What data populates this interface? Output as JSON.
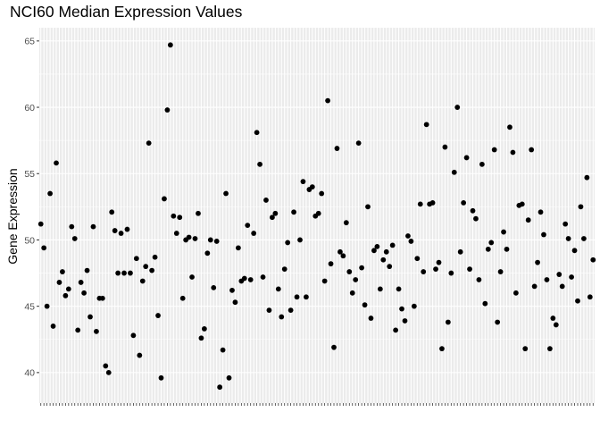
{
  "chart_data": {
    "type": "scatter",
    "title": "NCI60 Median Expression Values",
    "xlabel": "",
    "ylabel": "Gene Expression",
    "ylim": [
      37.7,
      66.0
    ],
    "yticks": [
      40,
      45,
      50,
      55,
      60,
      65
    ],
    "ytick_labels": [
      "40",
      "45",
      "50",
      "55",
      "60",
      "65"
    ],
    "x_tick_labels_visible": false,
    "grid": true,
    "point_color": "#000000",
    "panel_background": "#ebebeb",
    "grid_color": "#ffffff",
    "values": [
      51.2,
      49.4,
      45.0,
      53.5,
      43.5,
      55.8,
      46.8,
      47.6,
      45.8,
      46.3,
      51.0,
      50.1,
      43.2,
      46.8,
      46.0,
      47.7,
      44.2,
      51.0,
      43.1,
      45.6,
      45.6,
      40.5,
      40.0,
      52.1,
      50.7,
      47.5,
      50.5,
      47.5,
      50.8,
      47.5,
      42.8,
      48.6,
      41.3,
      46.9,
      48.0,
      57.3,
      47.7,
      48.7,
      44.3,
      39.6,
      53.1,
      59.8,
      64.7,
      51.8,
      50.5,
      51.7,
      45.6,
      50.0,
      50.2,
      47.2,
      50.1,
      52.0,
      42.6,
      43.3,
      49.0,
      50.0,
      46.4,
      49.9,
      38.9,
      41.7,
      53.5,
      39.6,
      46.2,
      45.3,
      49.4,
      46.9,
      47.1,
      51.1,
      47.0,
      50.5,
      58.1,
      55.7,
      47.2,
      53.0,
      44.7,
      51.7,
      52.0,
      46.3,
      44.2,
      47.8,
      49.8,
      44.7,
      52.1,
      45.7,
      50.0,
      54.4,
      45.7,
      53.8,
      54.0,
      51.8,
      52.0,
      53.5,
      46.9,
      60.5,
      48.2,
      41.9,
      56.9,
      49.1,
      48.8,
      51.3,
      47.6,
      46.0,
      47.0,
      57.3,
      47.9,
      45.1,
      52.5,
      44.1,
      49.2,
      49.5,
      46.3,
      48.5,
      49.1,
      48.0,
      49.6,
      43.2,
      46.3,
      44.8,
      43.9,
      50.3,
      49.9,
      45.0,
      48.6,
      52.7,
      47.6,
      58.7,
      52.7,
      52.8,
      47.8,
      48.3,
      41.8,
      57.0,
      43.8,
      47.5,
      55.1,
      60.0,
      49.1,
      52.8,
      56.2,
      47.8,
      52.2,
      51.6,
      47.0,
      55.7,
      45.2,
      49.3,
      49.8,
      56.8,
      43.8,
      47.6,
      50.6,
      49.3,
      58.5,
      56.6,
      46.0,
      52.6,
      52.7,
      41.8,
      51.5,
      56.8,
      46.5,
      48.3,
      52.1,
      50.4,
      47.0,
      41.8,
      44.1,
      43.6,
      47.4,
      46.5,
      51.2,
      50.1,
      47.2,
      49.2,
      45.4,
      52.5,
      50.1,
      54.7,
      45.7,
      48.5
    ]
  }
}
